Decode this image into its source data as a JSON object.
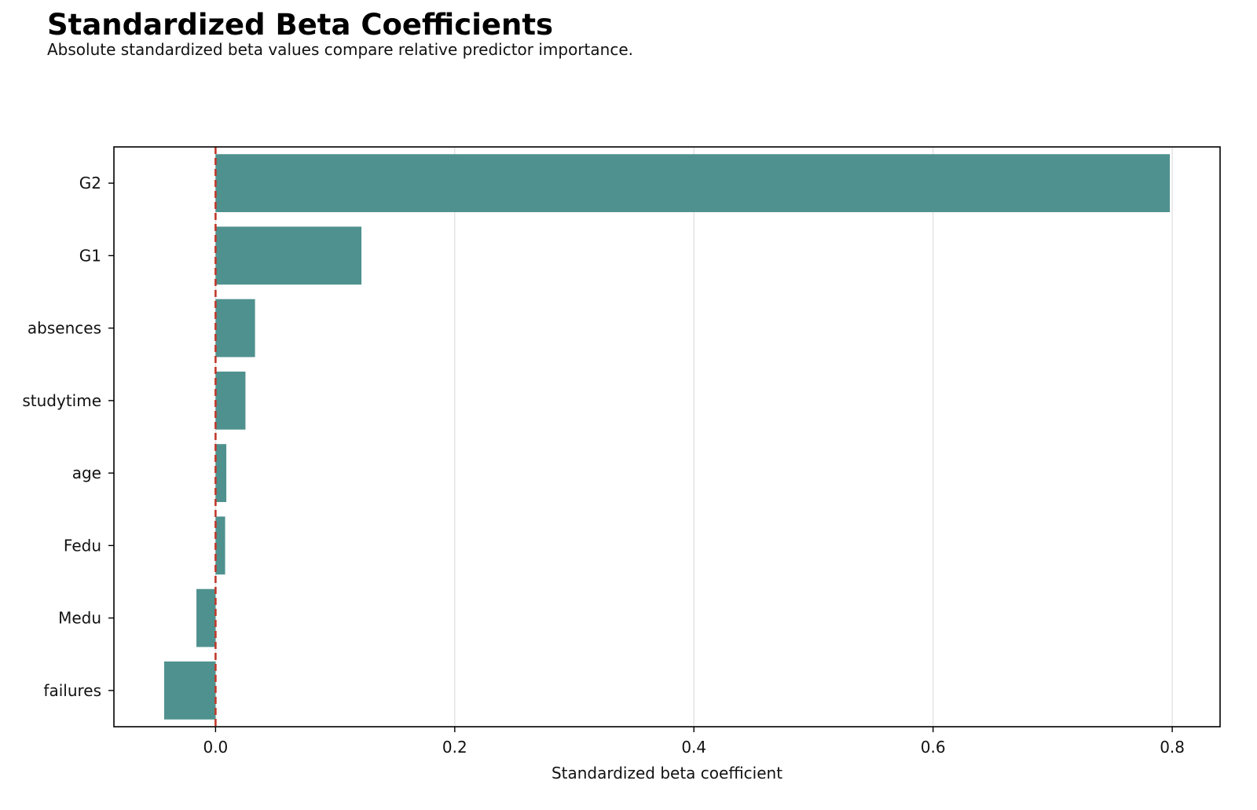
{
  "chart_data": {
    "type": "bar",
    "orientation": "horizontal",
    "title": "Standardized Beta Coefficients",
    "subtitle": "Absolute standardized beta values compare relative predictor importance.",
    "xlabel": "Standardized beta coefficient",
    "ylabel": "",
    "categories": [
      "G2",
      "G1",
      "absences",
      "studytime",
      "age",
      "Fedu",
      "Medu",
      "failures"
    ],
    "values": [
      0.798,
      0.122,
      0.033,
      0.025,
      0.009,
      0.008,
      -0.016,
      -0.043
    ],
    "xlim": [
      -0.085,
      0.84
    ],
    "xticks": [
      0.0,
      0.2,
      0.4,
      0.6,
      0.8
    ],
    "xtick_labels": [
      "0.0",
      "0.2",
      "0.4",
      "0.6",
      "0.8"
    ],
    "reference_line": {
      "x": 0,
      "style": "dashed",
      "color": "#c0392b"
    },
    "grid": "vertical",
    "bar_color": "#4f918e"
  }
}
